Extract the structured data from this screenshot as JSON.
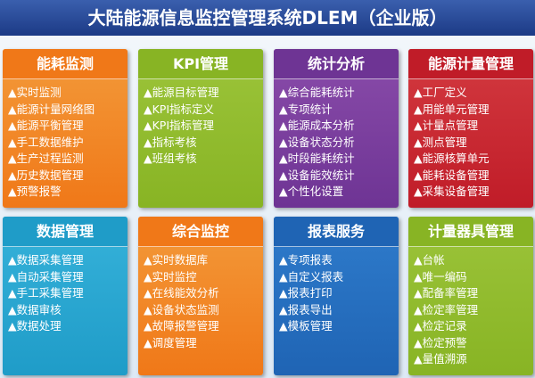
{
  "header": {
    "title": "大陆能源信息监控管理系统DLEM（企业版）"
  },
  "panels": [
    {
      "title": "能耗监测",
      "items": [
        "▲实时监测",
        "▲能源计量网络图",
        "▲能源平衡管理",
        "▲手工数据维护",
        "▲生产过程监测",
        "▲历史数据管理",
        "▲预警报警"
      ]
    },
    {
      "title": "KPI管理",
      "items": [
        "▲能源目标管理",
        "▲KPI指标定义",
        "▲KPI指标管理",
        "▲指标考核",
        "▲班组考核"
      ]
    },
    {
      "title": "统计分析",
      "items": [
        "▲综合能耗统计",
        "▲专项统计",
        "▲能源成本分析",
        "▲设备状态分析",
        "▲时段能耗统计",
        "▲设备能效统计",
        "▲个性化设置"
      ]
    },
    {
      "title": "能源计量管理",
      "items": [
        "▲工厂定义",
        "▲用能单元管理",
        "▲计量点管理",
        "▲测点管理",
        "▲能源核算单元",
        "▲能耗设备管理",
        "▲采集设备管理"
      ]
    },
    {
      "title": "数据管理",
      "items": [
        "▲数据采集管理",
        "▲自动采集管理",
        "▲手工采集管理",
        "▲数据审核",
        "▲数据处理"
      ]
    },
    {
      "title": "综合监控",
      "items": [
        "▲实时数据库",
        "▲实时监控",
        "▲在线能效分析",
        "▲设备状态监测",
        "▲故障报警管理",
        "▲调度管理"
      ]
    },
    {
      "title": "报表服务",
      "items": [
        "▲专项报表",
        "▲自定义报表",
        "▲报表打印",
        "▲报表导出",
        "▲模板管理"
      ]
    },
    {
      "title": "计量器具管理",
      "items": [
        "▲台帐",
        "▲唯一编码",
        "▲配备率管理",
        "▲检定率管理",
        "▲检定记录",
        "▲检定预警",
        "▲量值溯源"
      ]
    }
  ]
}
